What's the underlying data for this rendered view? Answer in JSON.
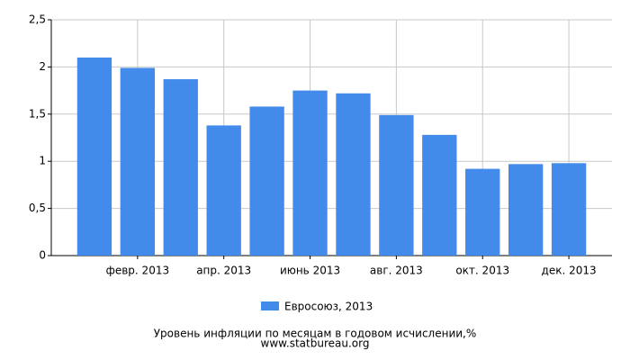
{
  "chart_data": {
    "type": "bar",
    "title": "Уровень инфляции по месяцам в годовом исчислении,%",
    "source": "www.statbureau.org",
    "categories": [
      null,
      "февр. 2013",
      null,
      "апр. 2013",
      null,
      "июнь 2013",
      null,
      "авг. 2013",
      null,
      "окт. 2013",
      null,
      "дек. 2013"
    ],
    "series": [
      {
        "name": "Евросоюз, 2013",
        "color": "#428bea",
        "values": [
          2.1,
          1.99,
          1.87,
          1.38,
          1.58,
          1.75,
          1.72,
          1.49,
          1.28,
          0.92,
          0.97,
          0.98
        ]
      }
    ],
    "ylim": [
      0,
      2.5
    ],
    "yticks": [
      0,
      {
        "value": 0.5,
        "label": "0,5"
      },
      1,
      {
        "value": 1.5,
        "label": "1,5"
      },
      2,
      {
        "value": 2.5,
        "label": "2,5"
      }
    ],
    "grid": true
  }
}
